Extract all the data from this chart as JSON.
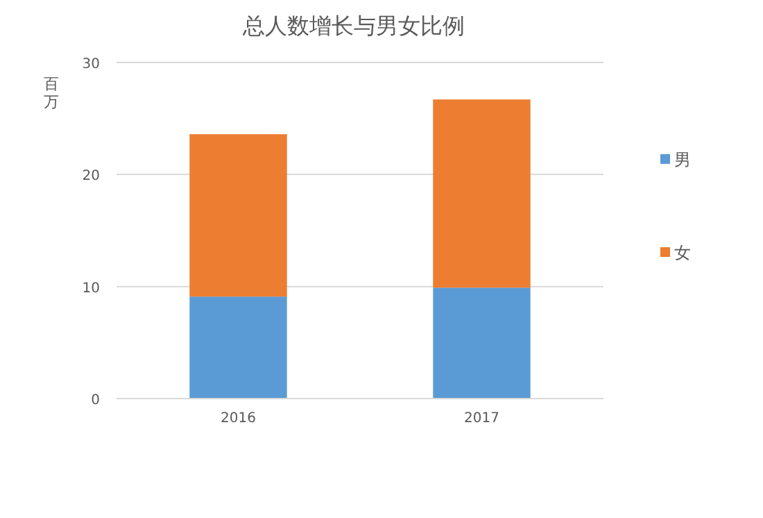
{
  "chart_data": {
    "type": "bar",
    "title": "总人数增长与男女比例",
    "ylabel": "百万",
    "categories": [
      "2016",
      "2017"
    ],
    "stacked": true,
    "series": [
      {
        "name": "男",
        "color": "#5b9bd5",
        "values": [
          9.1,
          9.9
        ]
      },
      {
        "name": "女",
        "color": "#ed7d31",
        "values": [
          14.5,
          16.8
        ]
      }
    ],
    "ylim": [
      0,
      30
    ],
    "yticks": [
      0,
      10,
      20,
      30
    ],
    "grid": "y",
    "legend": "right"
  }
}
